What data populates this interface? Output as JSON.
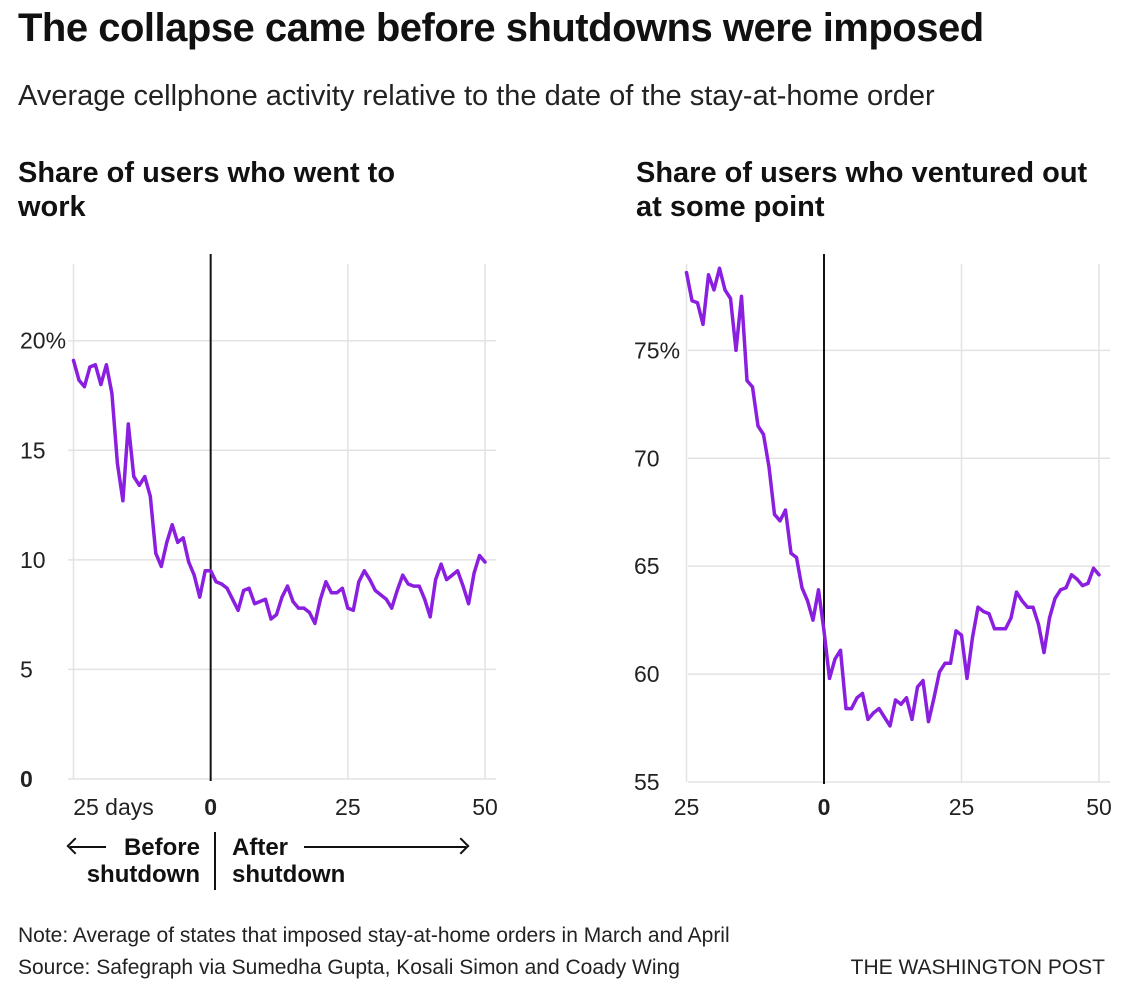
{
  "headline": "The collapse came before shutdowns were imposed",
  "dek": "Average cellphone activity relative to the date of the stay-at-home order",
  "annotations": {
    "before_line1": "Before",
    "before_line2": "shutdown",
    "after_line1": "After",
    "after_line2": "shutdown"
  },
  "note": "Note: Average of states that imposed stay-at-home orders in March and April",
  "source": "Source: Safegraph via Sumedha Gupta, Kosali Simon and Coady Wing",
  "credit": "THE WASHINGTON POST",
  "colors": {
    "line": "#8a1fe0",
    "grid": "#e3e3e3",
    "zero_line": "#111111"
  },
  "chart_data": [
    {
      "type": "line",
      "title": "Share of users who went to work",
      "x_ticks": [
        -25,
        0,
        25,
        50
      ],
      "x_tick_labels": [
        "25 days",
        "0",
        "25",
        "50"
      ],
      "y_ticks": [
        0,
        5,
        10,
        15,
        20
      ],
      "y_tick_labels": [
        "0",
        "5",
        "10",
        "15",
        "20%"
      ],
      "xlim": [
        -27,
        52
      ],
      "ylim": [
        0,
        23.5
      ],
      "grid": true,
      "reference_line_x": 0,
      "series": [
        {
          "x": [
            -25,
            -24,
            -23,
            -22,
            -21,
            -20,
            -19,
            -18,
            -17,
            -16,
            -15,
            -14,
            -13,
            -12,
            -11,
            -10,
            -9,
            -8,
            -7,
            -6,
            -5,
            -4,
            -3,
            -2,
            -1,
            0,
            1,
            2,
            3,
            4,
            5,
            6,
            7,
            8,
            9,
            10,
            11,
            12,
            13,
            14,
            15,
            16,
            17,
            18,
            19,
            20,
            21,
            22,
            23,
            24,
            25,
            26,
            27,
            28,
            29,
            30,
            31,
            32,
            33,
            34,
            35,
            36,
            37,
            38,
            39,
            40,
            41,
            42,
            43,
            44,
            45,
            46,
            47,
            48,
            49,
            50
          ],
          "values": [
            19.1,
            18.2,
            17.9,
            18.8,
            18.9,
            18.0,
            18.9,
            17.6,
            14.4,
            12.7,
            16.2,
            13.8,
            13.4,
            13.8,
            12.9,
            10.3,
            9.7,
            10.8,
            11.6,
            10.8,
            11.0,
            9.9,
            9.3,
            8.3,
            9.5,
            9.5,
            9.0,
            8.9,
            8.7,
            8.2,
            7.7,
            8.6,
            8.7,
            8.0,
            8.1,
            8.2,
            7.3,
            7.5,
            8.3,
            8.8,
            8.1,
            7.8,
            7.8,
            7.6,
            7.1,
            8.2,
            9.0,
            8.5,
            8.5,
            8.7,
            7.8,
            7.7,
            9.0,
            9.5,
            9.1,
            8.6,
            8.4,
            8.2,
            7.8,
            8.6,
            9.3,
            8.9,
            8.8,
            8.8,
            8.2,
            7.4,
            9.1,
            9.8,
            9.1,
            9.3,
            9.5,
            8.8,
            8.0,
            9.4,
            10.2,
            9.9
          ]
        }
      ]
    },
    {
      "type": "line",
      "title": "Share of users who ventured out at some point",
      "x_ticks": [
        -25,
        0,
        25,
        50
      ],
      "x_tick_labels": [
        "25",
        "0",
        "25",
        "50"
      ],
      "y_ticks": [
        55,
        60,
        65,
        70,
        75
      ],
      "y_tick_labels": [
        "55",
        "60",
        "65",
        "70",
        "75%"
      ],
      "xlim": [
        -27,
        52
      ],
      "ylim": [
        55,
        79
      ],
      "grid": true,
      "reference_line_x": 0,
      "series": [
        {
          "x": [
            -25,
            -24,
            -23,
            -22,
            -21,
            -20,
            -19,
            -18,
            -17,
            -16,
            -15,
            -14,
            -13,
            -12,
            -11,
            -10,
            -9,
            -8,
            -7,
            -6,
            -5,
            -4,
            -3,
            -2,
            -1,
            0,
            1,
            2,
            3,
            4,
            5,
            6,
            7,
            8,
            9,
            10,
            11,
            12,
            13,
            14,
            15,
            16,
            17,
            18,
            19,
            20,
            21,
            22,
            23,
            24,
            25,
            26,
            27,
            28,
            29,
            30,
            31,
            32,
            33,
            34,
            35,
            36,
            37,
            38,
            39,
            40,
            41,
            42,
            43,
            44,
            45,
            46,
            47,
            48,
            49,
            50
          ],
          "values": [
            78.6,
            77.3,
            77.2,
            76.2,
            78.5,
            77.8,
            78.8,
            77.8,
            77.4,
            75.0,
            77.5,
            73.6,
            73.3,
            71.5,
            71.1,
            69.6,
            67.4,
            67.1,
            67.6,
            65.6,
            65.4,
            64.0,
            63.4,
            62.5,
            63.9,
            62.0,
            59.8,
            60.7,
            61.1,
            58.4,
            58.4,
            58.9,
            59.1,
            57.9,
            58.2,
            58.4,
            58.0,
            57.6,
            58.8,
            58.6,
            58.9,
            57.9,
            59.4,
            59.7,
            57.8,
            58.9,
            60.1,
            60.5,
            60.5,
            62.0,
            61.8,
            59.8,
            61.7,
            63.1,
            62.9,
            62.8,
            62.1,
            62.1,
            62.1,
            62.6,
            63.8,
            63.4,
            63.1,
            63.1,
            62.3,
            61.0,
            62.6,
            63.5,
            63.9,
            64.0,
            64.6,
            64.4,
            64.1,
            64.2,
            64.9,
            64.6
          ]
        }
      ]
    }
  ]
}
